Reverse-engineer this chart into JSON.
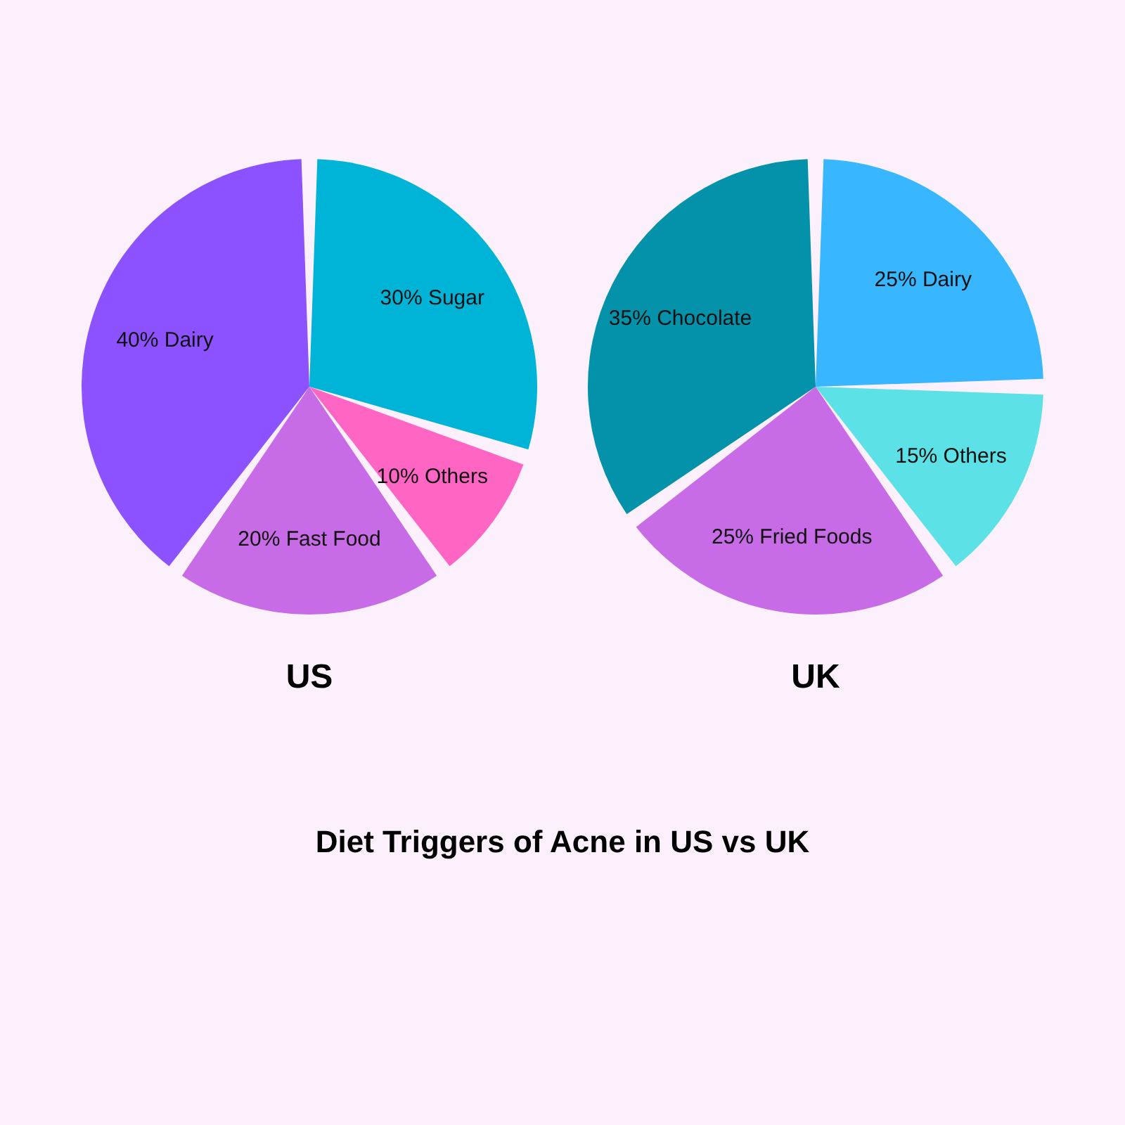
{
  "chart_data": [
    {
      "type": "pie",
      "title": "US",
      "categories": [
        "Sugar",
        "Others",
        "Fast Food",
        "Dairy"
      ],
      "values": [
        30,
        10,
        20,
        40
      ],
      "colors": [
        "#00b4d8",
        "#ff66c4",
        "#c86be6",
        "#8c52ff"
      ],
      "value_labels": [
        "30%",
        "10%",
        "20%",
        "40%"
      ],
      "annotations": [
        "Diet Triggers of Acne in US vs UK"
      ]
    },
    {
      "type": "pie",
      "title": "UK",
      "categories": [
        "Dairy",
        "Others",
        "Fried Foods",
        "Chocolate"
      ],
      "values": [
        25,
        15,
        25,
        35
      ],
      "colors": [
        "#38b6ff",
        "#5ce1e6",
        "#c86be6",
        "#0492ab"
      ],
      "value_labels": [
        "25%",
        "15%",
        "25%",
        "35%"
      ]
    }
  ]
}
